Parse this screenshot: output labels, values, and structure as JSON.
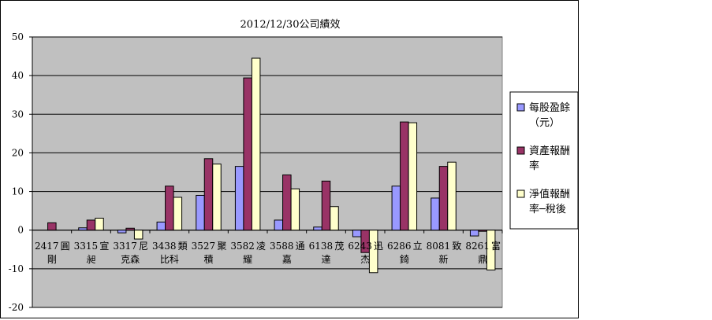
{
  "chart_data": {
    "type": "bar",
    "title": "2012/12/30公司績效",
    "categories": [
      [
        "2417",
        "圓",
        "剛"
      ],
      [
        "3315",
        "宣",
        "昶"
      ],
      [
        "3317",
        "尼",
        "克森"
      ],
      [
        "3438",
        "類",
        "比科"
      ],
      [
        "3527",
        "聚",
        "積"
      ],
      [
        "3582",
        "凌",
        "耀"
      ],
      [
        "3588",
        "通",
        "嘉"
      ],
      [
        "6138",
        "茂",
        "達"
      ],
      [
        "6243",
        "迅",
        "杰"
      ],
      [
        "6286",
        "立",
        "錡"
      ],
      [
        "8081",
        "致",
        "新"
      ],
      [
        "8261",
        "富",
        "鼎"
      ]
    ],
    "series": [
      {
        "name": "每股盈餘（元）",
        "legend_lines": [
          "每股盈餘",
          "（元）"
        ],
        "color": "#9999FF",
        "values": [
          0,
          0.6,
          -0.7,
          2.1,
          9.0,
          16.5,
          2.6,
          0.8,
          -1.7,
          11.4,
          8.3,
          -1.5
        ]
      },
      {
        "name": "資產報酬率",
        "legend_lines": [
          "資產報酬",
          "率"
        ],
        "color": "#993366",
        "values": [
          1.9,
          2.6,
          0.5,
          11.4,
          18.5,
          39.4,
          14.3,
          12.7,
          -5.8,
          28.0,
          16.5,
          -0.3
        ]
      },
      {
        "name": "淨值報酬率─稅後",
        "legend_lines": [
          "淨值報酬",
          "率─稅後"
        ],
        "color": "#FFFFCC",
        "values": [
          0,
          3.1,
          -2.3,
          8.5,
          17.1,
          44.5,
          10.7,
          6.1,
          -11.0,
          27.8,
          17.6,
          -10.3
        ]
      }
    ],
    "ylim": [
      -20,
      50
    ],
    "yticks": [
      -20,
      -10,
      0,
      10,
      20,
      30,
      40,
      50
    ],
    "grid": true,
    "legend": "right",
    "plot_background": "#C0C0C0"
  }
}
